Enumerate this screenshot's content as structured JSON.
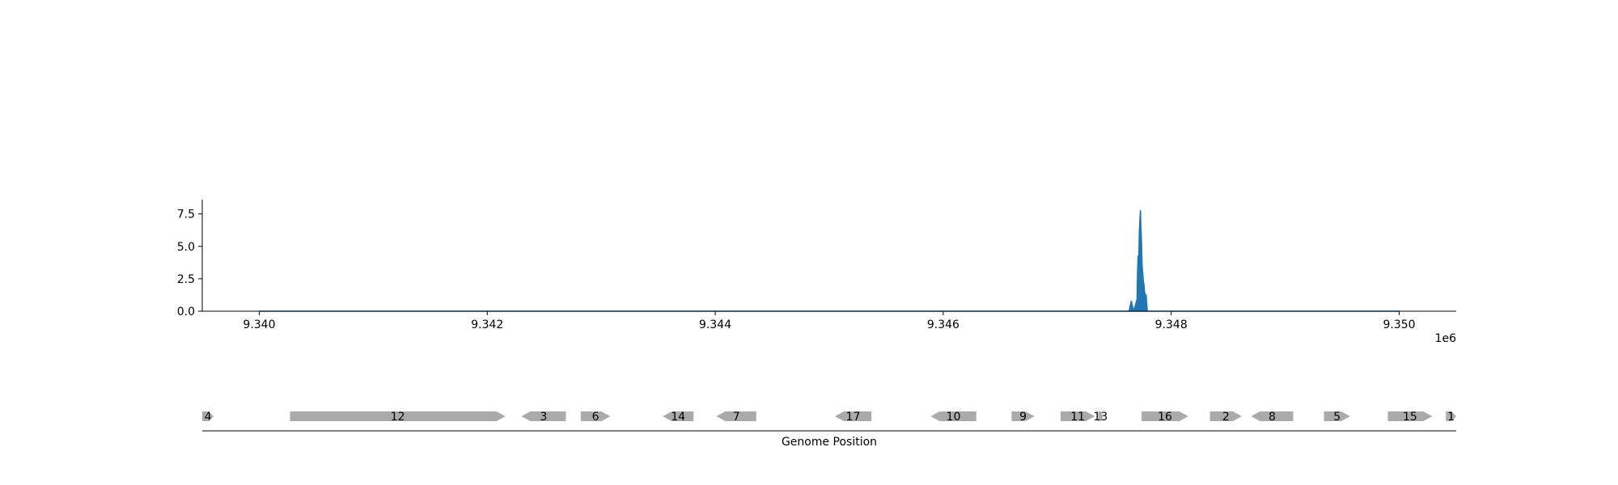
{
  "chart_data": [
    {
      "type": "area",
      "xlabel": "",
      "ylabel": "",
      "xlim": [
        9339500,
        9350500
      ],
      "ylim": [
        0,
        8.6
      ],
      "x_ticks": [
        9340000,
        9342000,
        9344000,
        9346000,
        9348000,
        9350000
      ],
      "x_tick_labels": [
        "9.340",
        "9.342",
        "9.344",
        "9.346",
        "9.348",
        "9.350"
      ],
      "x_offset_label": "1e6",
      "y_ticks": [
        0,
        2.5,
        5,
        7.5
      ],
      "y_tick_labels": [
        "0.0",
        "2.5",
        "5.0",
        "7.5"
      ],
      "color": "#1f77b4",
      "series": [
        {
          "x": [
            9340000,
            9347630,
            9347650,
            9347670,
            9347700,
            9347705,
            9347710,
            9347715,
            9347720,
            9347725,
            9347730,
            9347735,
            9347740,
            9347745,
            9347750,
            9347755,
            9347760,
            9347765,
            9347770,
            9347775,
            9347780,
            9347790,
            9347800,
            9350000
          ],
          "values": [
            0,
            0,
            0.8,
            0,
            0.9,
            3.2,
            4.3,
            3.9,
            6.1,
            7.0,
            7.8,
            6.4,
            5.1,
            3.5,
            3.0,
            2.4,
            2.1,
            1.6,
            1.3,
            0.5,
            1.3,
            0,
            0,
            0
          ]
        }
      ],
      "grid": false
    },
    {
      "type": "gene-track",
      "xlabel": "Genome Position",
      "xlim": [
        9339500,
        9350500
      ],
      "feature_color": "#aaaaaa",
      "features": [
        {
          "label": "4",
          "start": 9339500,
          "end": 9339600,
          "strand": "+"
        },
        {
          "label": "12",
          "start": 9340270,
          "end": 9342160,
          "strand": "+"
        },
        {
          "label": "3",
          "start": 9342300,
          "end": 9342690,
          "strand": "-"
        },
        {
          "label": "6",
          "start": 9342820,
          "end": 9343080,
          "strand": "+"
        },
        {
          "label": "14",
          "start": 9343540,
          "end": 9343810,
          "strand": "-"
        },
        {
          "label": "7",
          "start": 9344010,
          "end": 9344360,
          "strand": "-"
        },
        {
          "label": "17",
          "start": 9345050,
          "end": 9345370,
          "strand": "-"
        },
        {
          "label": "10",
          "start": 9345890,
          "end": 9346290,
          "strand": "-"
        },
        {
          "label": "9",
          "start": 9346600,
          "end": 9346800,
          "strand": "+"
        },
        {
          "label": "11",
          "start": 9347030,
          "end": 9347330,
          "strand": "+"
        },
        {
          "label": "13",
          "start": 9347360,
          "end": 9347400,
          "strand": "+"
        },
        {
          "label": "16",
          "start": 9347740,
          "end": 9348150,
          "strand": "+"
        },
        {
          "label": "2",
          "start": 9348340,
          "end": 9348620,
          "strand": "+"
        },
        {
          "label": "8",
          "start": 9348700,
          "end": 9349070,
          "strand": "-"
        },
        {
          "label": "5",
          "start": 9349340,
          "end": 9349570,
          "strand": "+"
        },
        {
          "label": "15",
          "start": 9349900,
          "end": 9350290,
          "strand": "+"
        },
        {
          "label": "1",
          "start": 9350410,
          "end": 9350500,
          "strand": "+"
        }
      ]
    }
  ]
}
